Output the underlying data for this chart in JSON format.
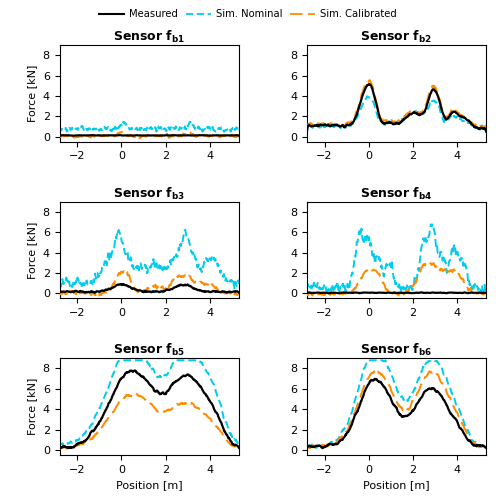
{
  "title_measured": "Measured",
  "title_nominal": "Sim. Nominal",
  "title_calibrated": "Sim. Calibrated",
  "sensors_short": [
    "b1",
    "b2",
    "b3",
    "b4",
    "b5",
    "b6"
  ],
  "xlim": [
    -2.8,
    5.3
  ],
  "ylim": [
    -0.5,
    9.0
  ],
  "yticks": [
    0,
    2,
    4,
    6,
    8
  ],
  "xticks": [
    -2,
    0,
    2,
    4
  ],
  "color_measured": "#000000",
  "color_nominal": "#00CCEE",
  "color_calibrated": "#FF8C00",
  "lw_measured": 1.6,
  "lw_nominal": 1.4,
  "lw_calibrated": 1.4,
  "xlabel": "Position [m]",
  "ylabel": "Force [kN]",
  "title_fontsize": 9,
  "axis_fontsize": 8,
  "tick_fontsize": 8
}
